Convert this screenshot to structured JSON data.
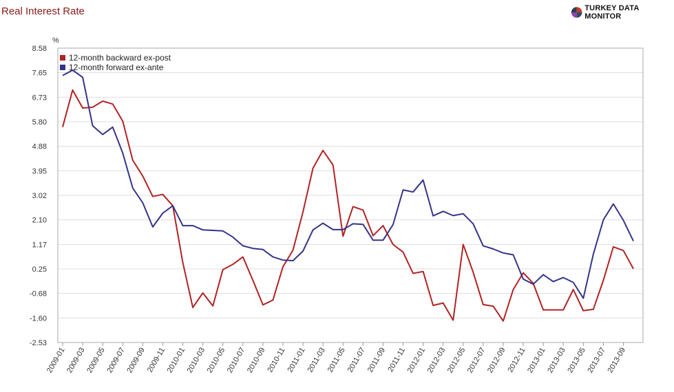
{
  "header": {
    "title": "Real Interest Rate",
    "brand": "TURKEY DATA MONITOR",
    "brand_logo_colors": [
      "#c0392b",
      "#34495e",
      "#8e44ad",
      "#2c3e50"
    ]
  },
  "chart_data": {
    "type": "line",
    "title": "Real Interest Rate",
    "ylabel": "%",
    "xlabel": "",
    "ylim": [
      -2.53,
      8.58
    ],
    "yticks": [
      "8.58",
      "7.65",
      "6.73",
      "5.80",
      "4.88",
      "3.95",
      "3.02",
      "2.10",
      "1.17",
      "0.25",
      "-0.68",
      "-1.60",
      "-2.53"
    ],
    "xtick_labels": [
      "2009-01",
      "2009-03",
      "2009-05",
      "2009-07",
      "2009-09",
      "2009-11",
      "2010-01",
      "2010-03",
      "2010-05",
      "2010-07",
      "2010-09",
      "2010-11",
      "2011-01",
      "2011-03",
      "2011-05",
      "2011-07",
      "2011-09",
      "2011-11",
      "2012-01",
      "2012-03",
      "2012-05",
      "2012-07",
      "2012-09",
      "2012-11",
      "2013-01",
      "2013-03",
      "2013-05",
      "2013-07",
      "2013-09"
    ],
    "x": [
      "2009-01",
      "2009-02",
      "2009-03",
      "2009-04",
      "2009-05",
      "2009-06",
      "2009-07",
      "2009-08",
      "2009-09",
      "2009-10",
      "2009-11",
      "2009-12",
      "2010-01",
      "2010-02",
      "2010-03",
      "2010-04",
      "2010-05",
      "2010-06",
      "2010-07",
      "2010-08",
      "2010-09",
      "2010-10",
      "2010-11",
      "2010-12",
      "2011-01",
      "2011-02",
      "2011-03",
      "2011-04",
      "2011-05",
      "2011-06",
      "2011-07",
      "2011-08",
      "2011-09",
      "2011-10",
      "2011-11",
      "2011-12",
      "2012-01",
      "2012-02",
      "2012-03",
      "2012-04",
      "2012-05",
      "2012-06",
      "2012-07",
      "2012-08",
      "2012-09",
      "2012-10",
      "2012-11",
      "2012-12",
      "2013-01",
      "2013-02",
      "2013-03",
      "2013-04",
      "2013-05",
      "2013-06",
      "2013-07",
      "2013-08",
      "2013-09",
      "2013-10"
    ],
    "legend": {
      "placement": "top-left"
    },
    "grid": {
      "horizontal": true,
      "vertical": false
    },
    "series": [
      {
        "name": "12-month backward ex-post",
        "color": "#b22222",
        "values": [
          5.6,
          7.0,
          6.32,
          6.35,
          6.58,
          6.47,
          5.82,
          4.35,
          3.75,
          2.98,
          3.06,
          2.63,
          0.49,
          -1.21,
          -0.66,
          -1.15,
          0.22,
          0.42,
          0.7,
          -0.18,
          -1.11,
          -0.93,
          0.33,
          0.95,
          2.4,
          4.05,
          4.72,
          4.17,
          1.48,
          2.6,
          2.47,
          1.5,
          1.88,
          1.17,
          0.88,
          0.08,
          0.15,
          -1.13,
          -1.04,
          -1.69,
          1.17,
          0.12,
          -1.1,
          -1.16,
          -1.72,
          -0.53,
          0.1,
          -0.3,
          -1.3,
          -1.3,
          -1.3,
          -0.53,
          -1.33,
          -1.28,
          -0.18,
          1.08,
          0.94,
          0.25
        ]
      },
      {
        "name": "12-month forward ex-ante",
        "color": "#333388",
        "values": [
          7.55,
          7.75,
          7.48,
          5.65,
          5.32,
          5.6,
          4.62,
          3.3,
          2.74,
          1.83,
          2.35,
          2.63,
          1.88,
          1.88,
          1.72,
          1.7,
          1.68,
          1.45,
          1.12,
          1.02,
          0.98,
          0.7,
          0.58,
          0.56,
          0.92,
          1.72,
          1.97,
          1.73,
          1.73,
          1.95,
          1.93,
          1.33,
          1.33,
          1.92,
          3.23,
          3.15,
          3.6,
          2.25,
          2.42,
          2.26,
          2.33,
          1.95,
          1.12,
          1.0,
          0.85,
          0.78,
          -0.14,
          -0.33,
          0.03,
          -0.23,
          -0.08,
          -0.26,
          -0.86,
          0.8,
          2.1,
          2.7,
          2.08,
          1.3
        ]
      }
    ]
  }
}
